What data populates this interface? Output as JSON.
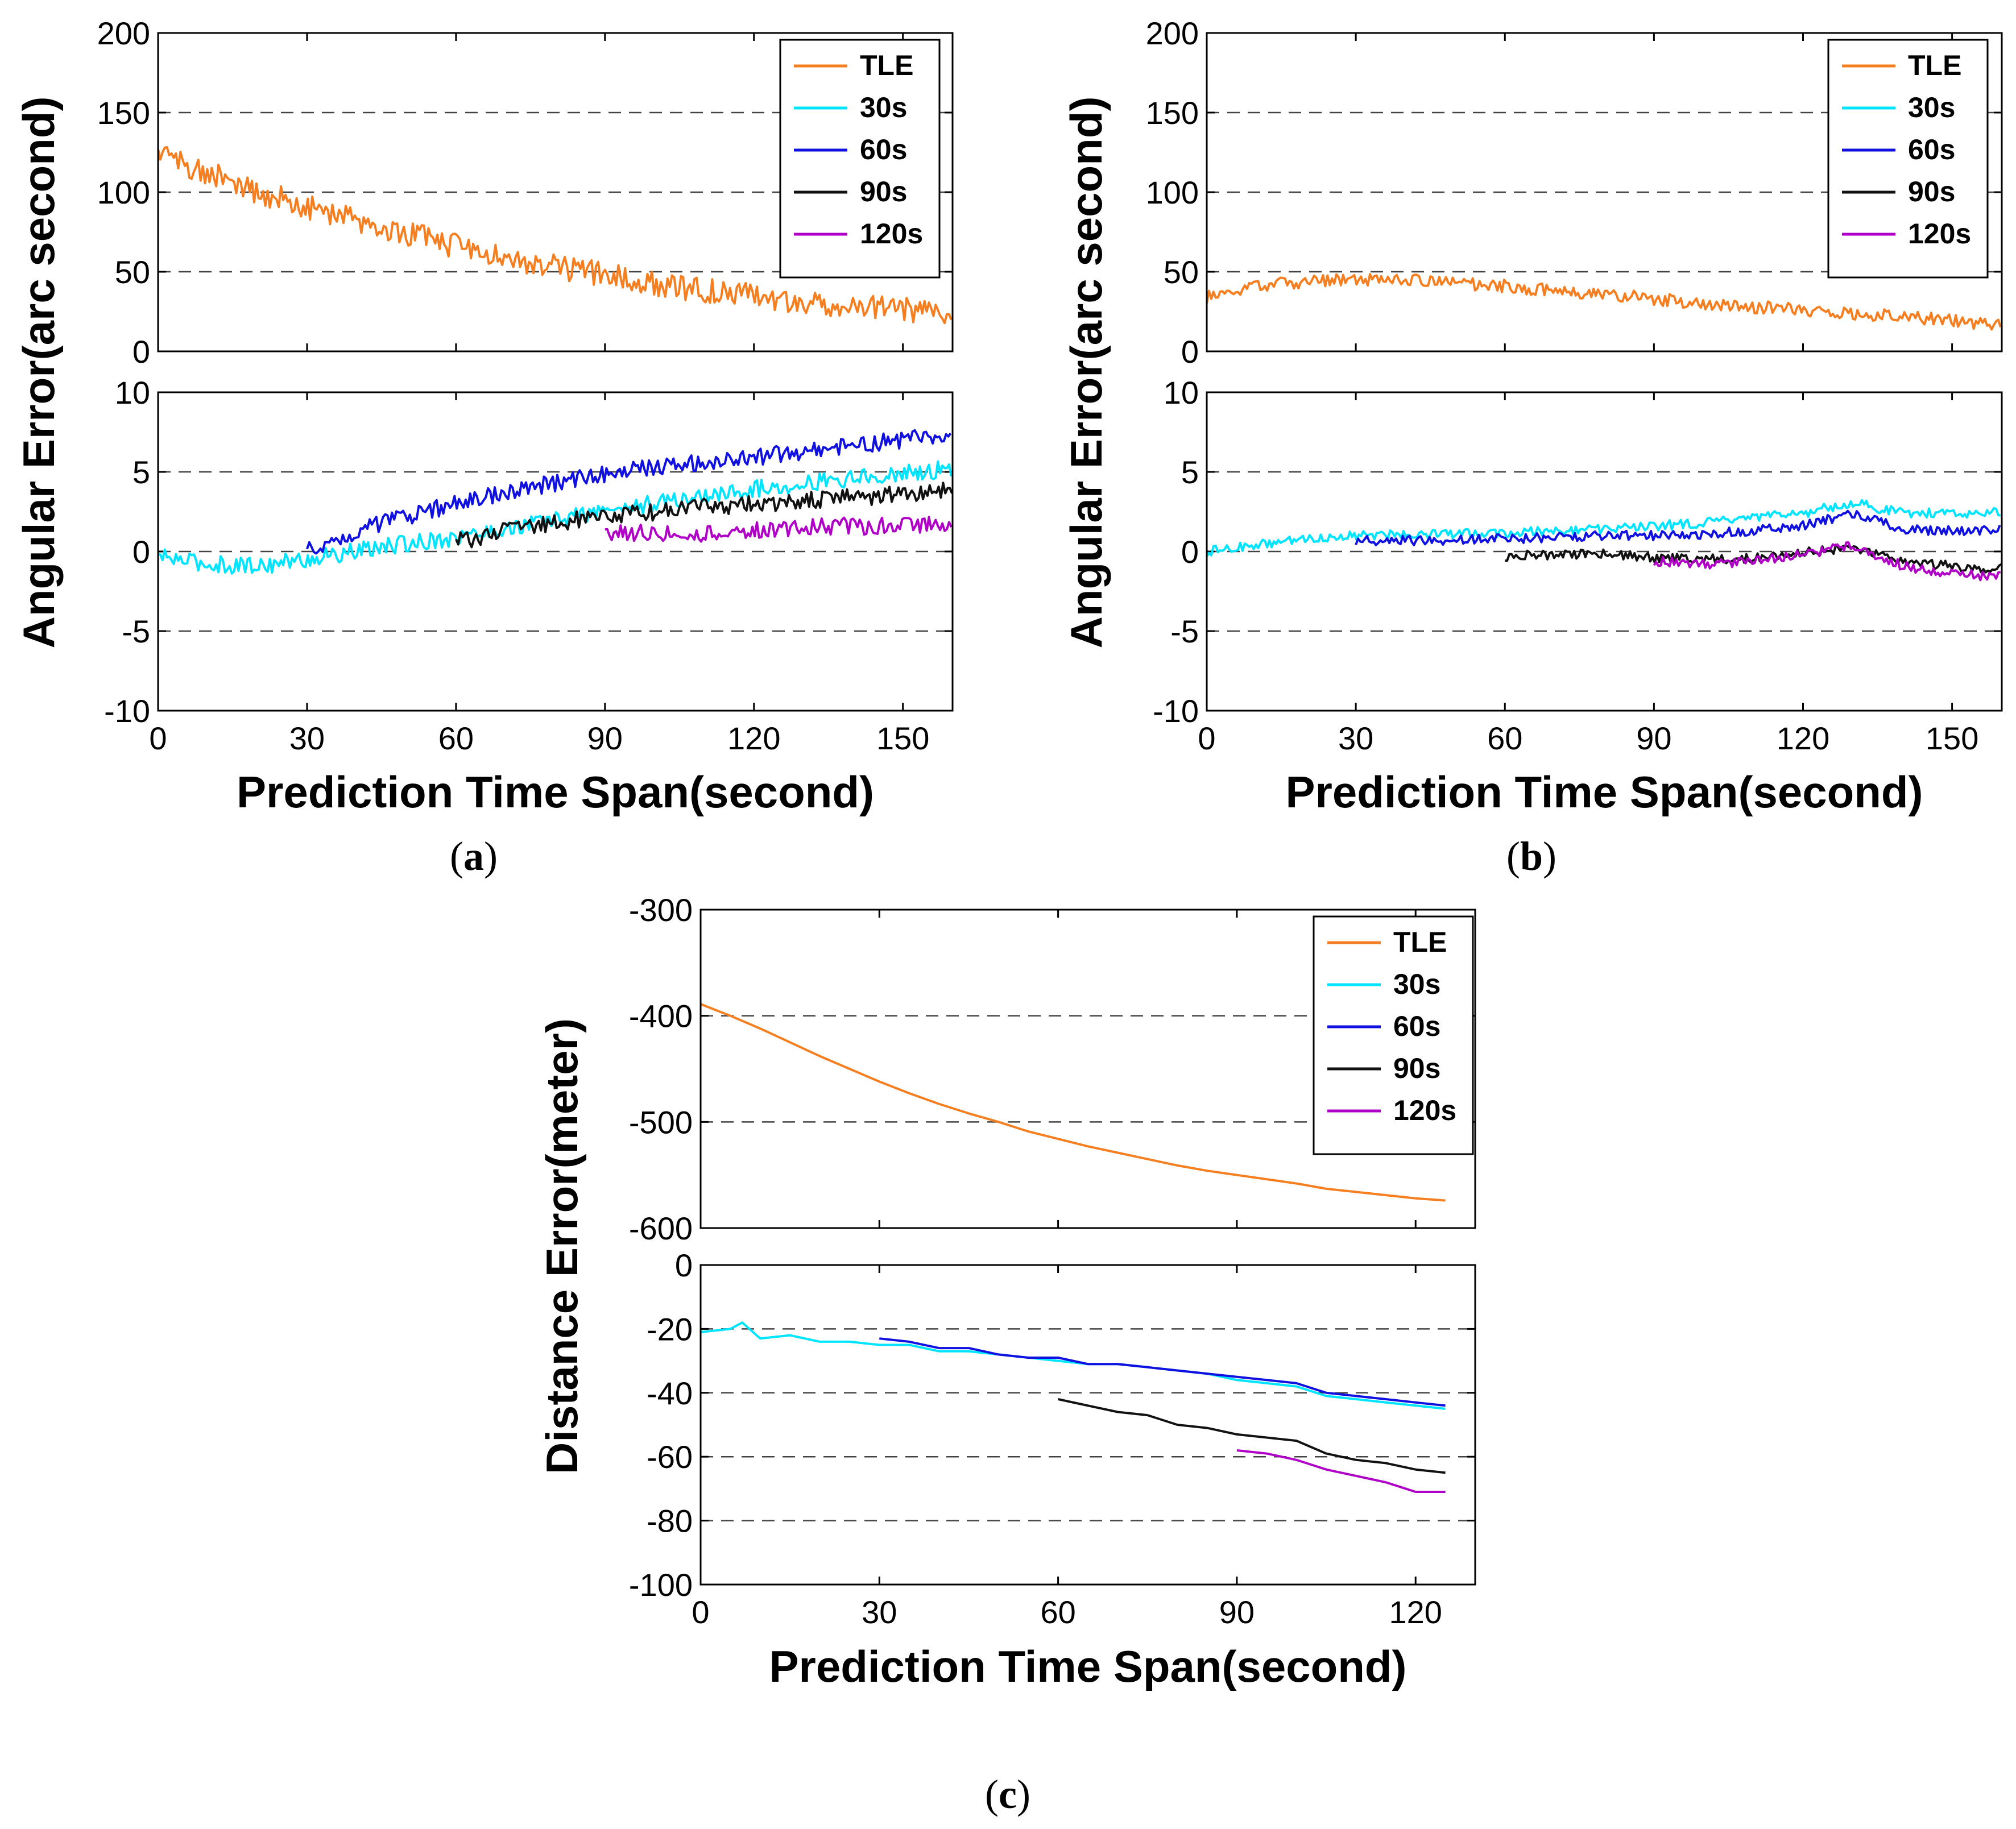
{
  "colors": {
    "TLE": "#F57F20",
    "30s": "#00E5FF",
    "60s": "#1010E0",
    "90s": "#111111",
    "120s": "#B000C8"
  },
  "legend_labels": [
    "TLE",
    "30s",
    "60s",
    "90s",
    "120s"
  ],
  "chart_data": [
    {
      "id": "a",
      "type": "line",
      "caption": "(a)",
      "xlabel": "Prediction Time Span(second)",
      "ylabel": "Angular Error(arc second)",
      "xlim": [
        0,
        160
      ],
      "xticks": [
        0,
        30,
        60,
        90,
        120,
        150
      ],
      "top": {
        "ylim": [
          0,
          200
        ],
        "yticks": [
          0,
          50,
          100,
          150,
          200
        ],
        "grid": [
          50,
          100,
          150
        ],
        "series": [
          {
            "name": "TLE",
            "x": [
              0,
              10,
              20,
              30,
              40,
              50,
              60,
              70,
              80,
              90,
              100,
              110,
              120,
              130,
              140,
              150,
              160
            ],
            "y": [
              125,
              112,
              100,
              91,
              82,
              74,
              66,
              59,
              53,
              48,
              43,
              38,
              35,
              31,
              29,
              26,
              24
            ]
          }
        ]
      },
      "bottom": {
        "ylim": [
          -10,
          10
        ],
        "yticks": [
          -10,
          -5,
          0,
          5,
          10
        ],
        "grid": [
          -5,
          0,
          5
        ],
        "series": [
          {
            "name": "30s",
            "x": [
              0,
              10,
              20,
              30,
              40,
              50,
              60,
              70,
              80,
              90,
              100,
              110,
              120,
              130,
              140,
              150,
              160
            ],
            "y": [
              -0.3,
              -0.8,
              -0.9,
              -0.5,
              0.0,
              0.5,
              0.9,
              1.4,
              2.0,
              2.6,
              3.0,
              3.5,
              3.9,
              4.3,
              4.6,
              4.9,
              5.2
            ]
          },
          {
            "name": "60s",
            "x": [
              30,
              40,
              50,
              60,
              70,
              80,
              90,
              100,
              110,
              120,
              130,
              140,
              150,
              160
            ],
            "y": [
              0.0,
              1.3,
              2.2,
              3.0,
              3.7,
              4.3,
              4.9,
              5.3,
              5.6,
              5.9,
              6.3,
              6.7,
              7.0,
              7.3
            ]
          },
          {
            "name": "90s",
            "x": [
              60,
              70,
              80,
              90,
              100,
              110,
              120,
              130,
              140,
              150,
              160
            ],
            "y": [
              0.6,
              1.3,
              1.8,
              2.2,
              2.5,
              2.8,
              3.0,
              3.2,
              3.4,
              3.6,
              3.9
            ]
          },
          {
            "name": "120s",
            "x": [
              90,
              100,
              110,
              120,
              130,
              140,
              150,
              160
            ],
            "y": [
              1.2,
              1.2,
              1.1,
              1.3,
              1.5,
              1.6,
              1.6,
              1.8
            ]
          }
        ]
      }
    },
    {
      "id": "b",
      "type": "line",
      "caption": "(b)",
      "xlabel": "Prediction Time Span(second)",
      "ylabel": "Angular Error(arc second)",
      "xlim": [
        0,
        160
      ],
      "xticks": [
        0,
        30,
        60,
        90,
        120,
        150
      ],
      "top": {
        "ylim": [
          0,
          200
        ],
        "yticks": [
          0,
          50,
          100,
          150,
          200
        ],
        "grid": [
          50,
          100,
          150
        ],
        "series": [
          {
            "name": "TLE",
            "x": [
              0,
              10,
              20,
              30,
              40,
              50,
              60,
              70,
              80,
              90,
              100,
              110,
              120,
              130,
              140,
              150,
              160
            ],
            "y": [
              34,
              41,
              44,
              45,
              45,
              43,
              41,
              38,
              36,
              33,
              30,
              28,
              26,
              24,
              22,
              19,
              17
            ]
          }
        ]
      },
      "bottom": {
        "ylim": [
          -10,
          10
        ],
        "yticks": [
          -10,
          -5,
          0,
          5,
          10
        ],
        "grid": [
          -5,
          0,
          5
        ],
        "series": [
          {
            "name": "30s",
            "x": [
              0,
              10,
              20,
              30,
              40,
              50,
              60,
              70,
              80,
              90,
              100,
              110,
              120,
              130,
              140,
              150,
              160
            ],
            "y": [
              0.0,
              0.4,
              0.8,
              1.0,
              1.1,
              1.1,
              1.2,
              1.3,
              1.4,
              1.6,
              1.8,
              2.1,
              2.4,
              3.1,
              2.4,
              2.4,
              2.5
            ]
          },
          {
            "name": "60s",
            "x": [
              30,
              40,
              50,
              60,
              70,
              80,
              90,
              100,
              110,
              120,
              130,
              140,
              150,
              160
            ],
            "y": [
              0.7,
              0.7,
              0.7,
              0.8,
              0.9,
              1.0,
              1.0,
              1.1,
              1.3,
              1.6,
              2.4,
              1.4,
              1.3,
              1.4
            ]
          },
          {
            "name": "90s",
            "x": [
              60,
              70,
              80,
              90,
              100,
              110,
              120,
              130,
              140,
              150,
              160
            ],
            "y": [
              -0.3,
              -0.2,
              -0.1,
              -0.4,
              -0.5,
              -0.4,
              -0.1,
              0.3,
              -0.6,
              -0.9,
              -1.1
            ]
          },
          {
            "name": "120s",
            "x": [
              90,
              100,
              110,
              120,
              130,
              140,
              150,
              160
            ],
            "y": [
              -0.6,
              -0.8,
              -0.6,
              -0.2,
              0.4,
              -0.9,
              -1.4,
              -1.6
            ]
          }
        ]
      }
    },
    {
      "id": "c",
      "type": "line",
      "caption": "(c)",
      "xlabel": "Prediction Time Span(second)",
      "ylabel": "Distance Error(meter)",
      "xlim": [
        0,
        130
      ],
      "xticks": [
        0,
        30,
        60,
        90,
        120
      ],
      "top": {
        "ylim": [
          -600,
          -300
        ],
        "yticks": [
          -600,
          -500,
          -400,
          -300
        ],
        "grid": [
          -500,
          -400
        ],
        "series": [
          {
            "name": "TLE",
            "x": [
              0,
              5,
              10,
              15,
              20,
              25,
              30,
              35,
              40,
              45,
              50,
              55,
              60,
              65,
              70,
              75,
              80,
              85,
              90,
              95,
              100,
              105,
              110,
              115,
              120,
              125
            ],
            "y": [
              -389,
              -400,
              -412,
              -425,
              -438,
              -450,
              -462,
              -473,
              -483,
              -492,
              -500,
              -509,
              -516,
              -523,
              -529,
              -535,
              -541,
              -546,
              -550,
              -554,
              -558,
              -563,
              -566,
              -569,
              -572,
              -574
            ]
          }
        ]
      },
      "bottom": {
        "ylim": [
          -100,
          0
        ],
        "yticks": [
          -100,
          -80,
          -60,
          -40,
          -20,
          0
        ],
        "grid": [
          -80,
          -60,
          -40,
          -20
        ],
        "series": [
          {
            "name": "30s",
            "x": [
              0,
              5,
              7,
              10,
              15,
              20,
              25,
              30,
              35,
              40,
              45,
              50,
              55,
              60,
              65,
              70,
              75,
              80,
              85,
              90,
              95,
              100,
              105,
              110,
              115,
              120,
              125
            ],
            "y": [
              -21,
              -20,
              -18,
              -23,
              -22,
              -24,
              -24,
              -25,
              -25,
              -27,
              -27,
              -28,
              -29,
              -30,
              -31,
              -31,
              -32,
              -33,
              -34,
              -36,
              -37,
              -38,
              -41,
              -42,
              -43,
              -44,
              -45
            ]
          },
          {
            "name": "60s",
            "x": [
              30,
              35,
              40,
              45,
              50,
              55,
              60,
              65,
              70,
              75,
              80,
              85,
              90,
              95,
              100,
              105,
              110,
              115,
              120,
              125
            ],
            "y": [
              -23,
              -24,
              -26,
              -26,
              -28,
              -29,
              -29,
              -31,
              -31,
              -32,
              -33,
              -34,
              -35,
              -36,
              -37,
              -40,
              -41,
              -42,
              -43,
              -44
            ]
          },
          {
            "name": "90s",
            "x": [
              60,
              65,
              70,
              75,
              80,
              85,
              90,
              95,
              100,
              105,
              110,
              115,
              120,
              125
            ],
            "y": [
              -42,
              -44,
              -46,
              -47,
              -50,
              -51,
              -53,
              -54,
              -55,
              -59,
              -61,
              -62,
              -64,
              -65
            ]
          },
          {
            "name": "120s",
            "x": [
              90,
              95,
              100,
              105,
              110,
              115,
              120,
              125
            ],
            "y": [
              -58,
              -59,
              -61,
              -64,
              -66,
              -68,
              -71,
              -71
            ]
          }
        ]
      }
    }
  ]
}
